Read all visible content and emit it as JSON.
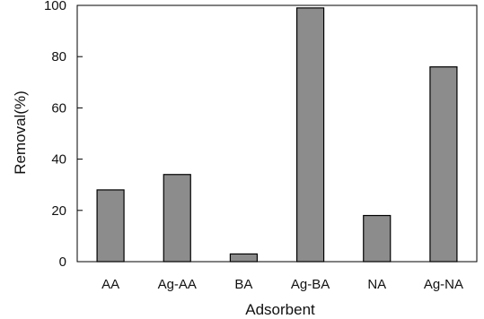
{
  "chart_data": {
    "type": "bar",
    "title": "",
    "xlabel": "Adsorbent",
    "ylabel": "Removal(%)",
    "categories": [
      "AA",
      "Ag-AA",
      "BA",
      "Ag-BA",
      "NA",
      "Ag-NA"
    ],
    "values": [
      28,
      34,
      3,
      99,
      18,
      76
    ],
    "ylim": [
      0,
      100
    ],
    "yticks": [
      0,
      20,
      40,
      60,
      80,
      100
    ],
    "grid": false,
    "legend": "none",
    "colors": {
      "bar_fill": "#8c8c8c",
      "bar_stroke": "#000000",
      "axis": "#000000"
    }
  }
}
